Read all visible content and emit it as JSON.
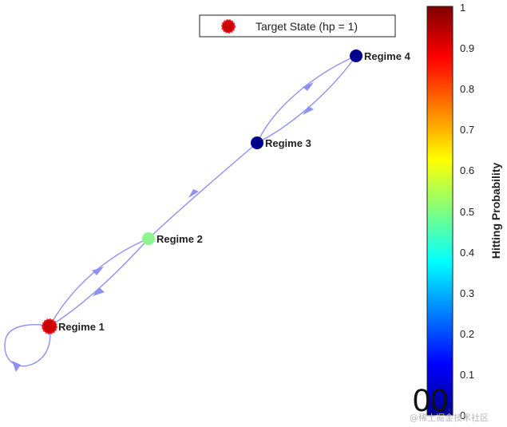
{
  "legend": {
    "label": "Target State (hp = 1)"
  },
  "nodes": [
    {
      "id": "regime-1",
      "label": "Regime 1",
      "hp": 1.0,
      "color": "#cc0000",
      "target": true
    },
    {
      "id": "regime-2",
      "label": "Regime 2",
      "hp": 0.55,
      "color": "#8ef58e",
      "target": false
    },
    {
      "id": "regime-3",
      "label": "Regime 3",
      "hp": 0.0,
      "color": "#00008f",
      "target": false
    },
    {
      "id": "regime-4",
      "label": "Regime 4",
      "hp": 0.0,
      "color": "#00008f",
      "target": false
    }
  ],
  "edges": [
    {
      "from": "Regime 1",
      "to": "Regime 1"
    },
    {
      "from": "Regime 1",
      "to": "Regime 2"
    },
    {
      "from": "Regime 2",
      "to": "Regime 1"
    },
    {
      "from": "Regime 2",
      "to": "Regime 3"
    },
    {
      "from": "Regime 3",
      "to": "Regime 4"
    },
    {
      "from": "Regime 4",
      "to": "Regime 3"
    }
  ],
  "colorbar": {
    "title": "Hitting Probability",
    "range": [
      0,
      1
    ],
    "colormap": "jet",
    "ticks": [
      "0",
      "0.1",
      "0.2",
      "0.3",
      "0.4",
      "0.5",
      "0.6",
      "0.7",
      "0.8",
      "0.9",
      "1"
    ]
  },
  "stray_text": "00",
  "watermark": "@稀土掘金技术社区"
}
